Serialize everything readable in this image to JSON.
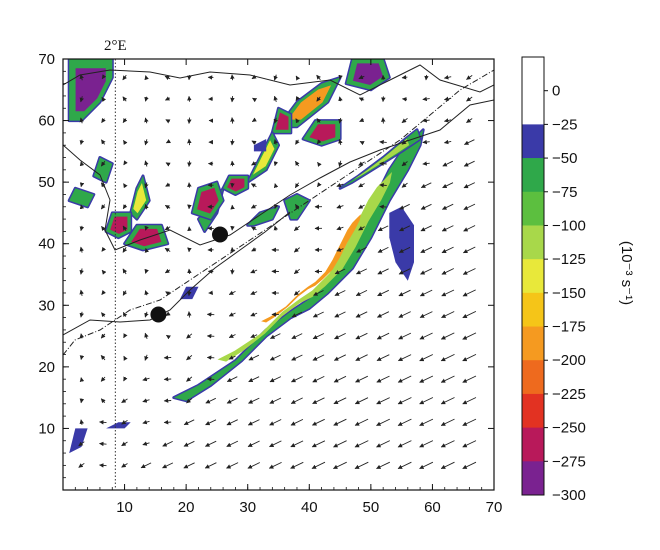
{
  "chart_data": {
    "type": "heatmap",
    "title": "",
    "xlabel": "",
    "ylabel": "",
    "xlim": [
      0,
      70
    ],
    "ylim": [
      0,
      70
    ],
    "xticks": [
      10,
      20,
      30,
      40,
      50,
      60,
      70
    ],
    "yticks": [
      10,
      20,
      30,
      40,
      50,
      60,
      70
    ],
    "grid": false,
    "meridian_label": "2°E",
    "meridian_x": 8.5,
    "colorbar": {
      "unit_label": "(10⁻³ s⁻¹)",
      "ticks": [
        "0",
        "−25",
        "−50",
        "−75",
        "−100",
        "−125",
        "−150",
        "−175",
        "−200",
        "−225",
        "−250",
        "−275",
        "−300"
      ],
      "colors": [
        "#ffffff",
        "#ffffff",
        "#3a3aa8",
        "#2fa84a",
        "#5cbf3f",
        "#a8d84a",
        "#e8e83a",
        "#f5c518",
        "#f59a20",
        "#ee6a1e",
        "#e23222",
        "#b8195a",
        "#7a2290"
      ]
    },
    "markers": [
      {
        "name": "point-a",
        "x": 15.5,
        "y": 28.5
      },
      {
        "name": "point-b",
        "x": 25.5,
        "y": 41.5
      }
    ],
    "regions": [
      {
        "name": "main-band",
        "points": [
          [
            18,
            15
          ],
          [
            22,
            17
          ],
          [
            28,
            21
          ],
          [
            33,
            26
          ],
          [
            37,
            29
          ],
          [
            40,
            31
          ],
          [
            44,
            35
          ],
          [
            47,
            40
          ],
          [
            49,
            44
          ],
          [
            51,
            48
          ],
          [
            53,
            52
          ],
          [
            55,
            55
          ],
          [
            57,
            57
          ],
          [
            58.5,
            58.5
          ],
          [
            58,
            56
          ],
          [
            56,
            52
          ],
          [
            53,
            47
          ],
          [
            50,
            41
          ],
          [
            47,
            36
          ],
          [
            43,
            32
          ],
          [
            40,
            29.5
          ],
          [
            37,
            28
          ],
          [
            33,
            25
          ],
          [
            29,
            21
          ],
          [
            24,
            17
          ],
          [
            20,
            14.5
          ]
        ],
        "levels": [
          -75,
          -125,
          -200
        ]
      },
      {
        "name": "north-band",
        "points": [
          [
            45,
            49
          ],
          [
            48,
            51
          ],
          [
            52,
            54
          ],
          [
            55,
            56.5
          ],
          [
            57.5,
            58.5
          ],
          [
            58,
            57
          ],
          [
            55,
            55
          ],
          [
            51,
            52.5
          ],
          [
            47,
            50
          ]
        ],
        "levels": [
          -75,
          -125
        ]
      },
      {
        "name": "blob-1",
        "points": [
          [
            1,
            60
          ],
          [
            1,
            70
          ],
          [
            8,
            70
          ],
          [
            8,
            67
          ],
          [
            6,
            63
          ],
          [
            3,
            60
          ]
        ],
        "levels": [
          -75,
          -300
        ]
      },
      {
        "name": "blob-2",
        "points": [
          [
            46,
            66
          ],
          [
            47,
            70
          ],
          [
            52,
            70
          ],
          [
            53,
            67
          ],
          [
            50,
            65
          ]
        ],
        "levels": [
          -75,
          -300
        ]
      },
      {
        "name": "blob-3",
        "points": [
          [
            35,
            59
          ],
          [
            38,
            63
          ],
          [
            42,
            66
          ],
          [
            45,
            67
          ],
          [
            43,
            63
          ],
          [
            38,
            59
          ]
        ],
        "levels": [
          -75,
          -200
        ]
      },
      {
        "name": "blob-4",
        "points": [
          [
            34,
            58
          ],
          [
            35,
            62
          ],
          [
            37,
            61
          ],
          [
            37,
            58
          ]
        ],
        "levels": [
          -75,
          -275
        ]
      },
      {
        "name": "blob-5",
        "points": [
          [
            39,
            57
          ],
          [
            41,
            60
          ],
          [
            45,
            60
          ],
          [
            45,
            57
          ],
          [
            42,
            56
          ]
        ],
        "levels": [
          -75,
          -275
        ]
      },
      {
        "name": "blob-6",
        "points": [
          [
            30,
            50
          ],
          [
            32,
            54
          ],
          [
            34,
            58
          ],
          [
            35,
            56
          ],
          [
            33,
            52
          ]
        ],
        "levels": [
          -75,
          -150
        ]
      },
      {
        "name": "blob-7",
        "points": [
          [
            22,
            44
          ],
          [
            24,
            46
          ],
          [
            26,
            49
          ],
          [
            25,
            45
          ],
          [
            23,
            42
          ]
        ],
        "levels": [
          -75
        ]
      },
      {
        "name": "blob-8",
        "points": [
          [
            21,
            45
          ],
          [
            22,
            49
          ],
          [
            25,
            50
          ],
          [
            26,
            47
          ],
          [
            24,
            44
          ]
        ],
        "levels": [
          -75,
          -275
        ]
      },
      {
        "name": "blob-9",
        "points": [
          [
            26,
            49
          ],
          [
            27,
            51
          ],
          [
            30,
            51
          ],
          [
            30,
            49
          ],
          [
            28,
            48
          ]
        ],
        "levels": [
          -75,
          -275
        ]
      },
      {
        "name": "blob-10",
        "points": [
          [
            11,
            45
          ],
          [
            12,
            49
          ],
          [
            13,
            51
          ],
          [
            14,
            47
          ],
          [
            12,
            44
          ]
        ],
        "levels": [
          -75,
          -150
        ]
      },
      {
        "name": "blob-11",
        "points": [
          [
            7,
            42
          ],
          [
            8,
            45
          ],
          [
            11,
            45
          ],
          [
            11,
            42
          ],
          [
            9,
            41
          ]
        ],
        "levels": [
          -75,
          -275
        ]
      },
      {
        "name": "blob-12",
        "points": [
          [
            10,
            40
          ],
          [
            12,
            43
          ],
          [
            16,
            43
          ],
          [
            17,
            40
          ],
          [
            13,
            39
          ]
        ],
        "levels": [
          -75,
          -275
        ]
      },
      {
        "name": "blob-13",
        "points": [
          [
            1,
            47
          ],
          [
            2,
            49
          ],
          [
            5,
            48
          ],
          [
            4,
            46
          ]
        ],
        "levels": [
          -75
        ]
      },
      {
        "name": "blob-14",
        "points": [
          [
            5,
            51
          ],
          [
            6,
            54
          ],
          [
            8,
            53
          ],
          [
            7,
            50
          ]
        ],
        "levels": [
          -75
        ]
      },
      {
        "name": "blob-15",
        "points": [
          [
            36,
            47
          ],
          [
            38,
            48
          ],
          [
            40,
            47
          ],
          [
            38,
            44
          ],
          [
            37,
            44
          ]
        ],
        "levels": [
          -75
        ]
      },
      {
        "name": "blob-16",
        "points": [
          [
            30,
            43
          ],
          [
            32,
            45
          ],
          [
            35,
            46
          ],
          [
            34,
            44
          ],
          [
            31,
            43
          ]
        ],
        "levels": [
          -75
        ]
      },
      {
        "name": "blob-17",
        "points": [
          [
            53,
            45
          ],
          [
            55,
            46
          ],
          [
            57,
            43
          ],
          [
            57,
            37
          ],
          [
            56,
            34
          ],
          [
            54,
            37
          ],
          [
            53,
            41
          ]
        ],
        "levels": [
          -50
        ]
      },
      {
        "name": "blob-18",
        "points": [
          [
            19,
            31
          ],
          [
            20,
            33
          ],
          [
            22,
            33
          ],
          [
            21,
            31
          ]
        ],
        "levels": [
          -50
        ]
      },
      {
        "name": "blob-19",
        "points": [
          [
            31,
            56
          ],
          [
            33,
            57
          ],
          [
            33,
            55
          ],
          [
            31,
            55
          ]
        ],
        "levels": [
          -50
        ]
      },
      {
        "name": "blob-20",
        "points": [
          [
            1,
            6
          ],
          [
            2,
            10
          ],
          [
            4,
            10
          ],
          [
            3,
            7
          ]
        ],
        "levels": [
          -50
        ]
      },
      {
        "name": "blob-21",
        "points": [
          [
            7,
            10
          ],
          [
            9,
            11
          ],
          [
            11,
            11
          ],
          [
            10,
            10
          ]
        ],
        "levels": [
          -50
        ]
      }
    ]
  }
}
